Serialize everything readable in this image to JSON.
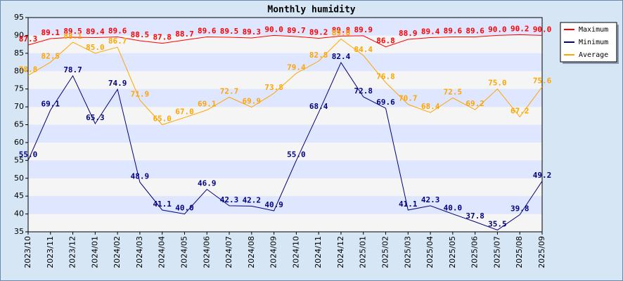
{
  "chart_data": {
    "type": "line",
    "title": "Monthly humidity",
    "categories": [
      "2023/10",
      "2023/11",
      "2023/12",
      "2024/01",
      "2024/02",
      "2024/03",
      "2024/04",
      "2024/05",
      "2024/06",
      "2024/07",
      "2024/08",
      "2024/09",
      "2024/10",
      "2024/11",
      "2024/12",
      "2025/01",
      "2025/02",
      "2025/03",
      "2025/04",
      "2025/05",
      "2025/06",
      "2025/07",
      "2025/08",
      "2025/09"
    ],
    "series": [
      {
        "name": "Maximum",
        "color": "#ff0000",
        "values": [
          87.3,
          89.1,
          89.5,
          89.4,
          89.6,
          88.5,
          87.8,
          88.7,
          89.6,
          89.5,
          89.3,
          90.0,
          89.7,
          89.2,
          89.8,
          89.9,
          86.8,
          88.9,
          89.4,
          89.6,
          89.6,
          90.0,
          90.2,
          90.0
        ],
        "value_labels": [
          "87.3",
          "89.1",
          "89.5",
          "89.4",
          "89.6",
          "88.5",
          "87.8",
          "88.7",
          "89.6",
          "89.5",
          "89.3",
          "90.0",
          "89.7",
          "89.2",
          "89.8",
          "89.9",
          "86.8",
          "88.9",
          "89.4",
          "89.6",
          "89.6",
          "90.0",
          "90.2",
          "90.0"
        ]
      },
      {
        "name": "Minimum",
        "color": "#000080",
        "values": [
          55.0,
          69.1,
          78.7,
          65.3,
          74.9,
          48.9,
          41.1,
          40.0,
          46.9,
          42.3,
          42.2,
          40.9,
          55.0,
          68.4,
          82.4,
          72.8,
          69.6,
          41.1,
          42.3,
          40.0,
          37.8,
          35.5,
          39.8,
          49.2
        ],
        "value_labels": [
          "55.0",
          "69.1",
          "78.7",
          "65.3",
          "74.9",
          "48.9",
          "41.1",
          "40.0",
          "46.9",
          "42.3",
          "42.2",
          "40.9",
          "55.0",
          "68.4",
          "82.4",
          "72.8",
          "69.6",
          "41.1",
          "42.3",
          "40.0",
          "37.8",
          "35.5",
          "39.8",
          "49.2"
        ]
      },
      {
        "name": "Average",
        "color": "#ffa500",
        "values": [
          78.8,
          82.5,
          88.1,
          85.0,
          86.7,
          71.9,
          65.0,
          67.0,
          69.1,
          72.7,
          69.9,
          73.8,
          79.4,
          82.8,
          89.0,
          84.4,
          76.8,
          70.7,
          68.4,
          72.5,
          69.2,
          75.0,
          67.2,
          75.6
        ],
        "value_labels": [
          "78.8",
          "82.5",
          "88.1",
          "85.0",
          "86.7",
          "71.9",
          "65.0",
          "67.0",
          "69.1",
          "72.7",
          "69.9",
          "73.8",
          "79.4",
          "82.8",
          "89.0",
          "84.4",
          "76.8",
          "70.7",
          "68.4",
          "72.5",
          "69.2",
          "75.0",
          "67.2",
          "75.6"
        ]
      }
    ],
    "ylim": [
      35,
      95
    ],
    "yticks": [
      35,
      40,
      45,
      50,
      55,
      60,
      65,
      70,
      75,
      80,
      85,
      90,
      95
    ],
    "legend": "upper right"
  }
}
